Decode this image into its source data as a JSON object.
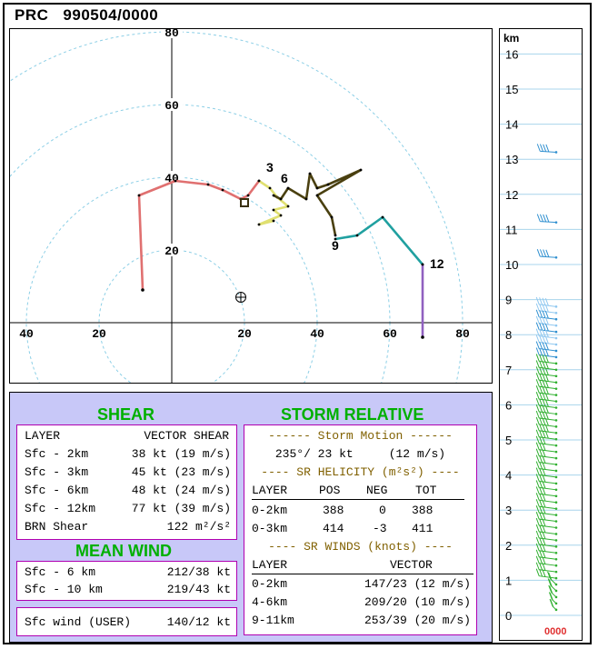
{
  "header": {
    "station": "PRC",
    "datetime": "990504/0000"
  },
  "chart_data": {
    "type": "line",
    "x_ticks": [
      "40",
      "20",
      "20",
      "40",
      "60",
      "80"
    ],
    "y_ticks": [
      "80",
      "60",
      "40",
      "20"
    ],
    "point_labels": [
      "3",
      "6",
      "9",
      "12"
    ],
    "series": [
      {
        "color": "#e07070",
        "points": [
          [
            -8,
            9
          ],
          [
            -9,
            35
          ],
          [
            1,
            39
          ],
          [
            10,
            38
          ],
          [
            14,
            36.5
          ],
          [
            19,
            34
          ],
          [
            21,
            35
          ],
          [
            24,
            39
          ]
        ]
      },
      {
        "color": "#e0e070",
        "points": [
          [
            24,
            39
          ],
          [
            27,
            37
          ],
          [
            29,
            34.5
          ],
          [
            32,
            32
          ],
          [
            28,
            31
          ],
          [
            30,
            29.5
          ],
          [
            24,
            27
          ],
          [
            28,
            28
          ]
        ]
      },
      {
        "color": "#4a4010",
        "points": [
          [
            28,
            35
          ],
          [
            30,
            34
          ],
          [
            32,
            37
          ],
          [
            37,
            34
          ],
          [
            38,
            41
          ],
          [
            40,
            37
          ],
          [
            43,
            38
          ],
          [
            52,
            42
          ],
          [
            40,
            35
          ],
          [
            44,
            29
          ],
          [
            45,
            24
          ]
        ]
      },
      {
        "color": "#20a0a0",
        "points": [
          [
            45,
            23
          ],
          [
            51,
            24
          ],
          [
            58,
            29
          ],
          [
            69,
            16
          ]
        ]
      },
      {
        "color": "#9060c0",
        "points": [
          [
            69,
            16
          ],
          [
            69,
            -4
          ]
        ]
      }
    ],
    "storm_motion": [
      19,
      7
    ],
    "square_marker": [
      20,
      33
    ]
  },
  "shear": {
    "title": "SHEAR",
    "header_layer": "LAYER",
    "header_vector": "VECTOR SHEAR",
    "rows": [
      {
        "label": "Sfc - 2km",
        "value": "38 kt (19 m/s)"
      },
      {
        "label": "Sfc - 3km",
        "value": "45 kt (23 m/s)"
      },
      {
        "label": "Sfc - 6km",
        "value": "48 kt (24 m/s)"
      },
      {
        "label": "Sfc - 12km",
        "value": "77 kt (39 m/s)"
      },
      {
        "label": "BRN Shear",
        "value": "122 m²/s²"
      }
    ]
  },
  "mean_wind": {
    "title": "MEAN WIND",
    "rows": [
      {
        "label": "Sfc - 6 km",
        "value": "212/38 kt"
      },
      {
        "label": "Sfc - 10 km",
        "value": "219/43 kt"
      }
    ],
    "sfc_wind_label": "Sfc wind (USER)",
    "sfc_wind_value": "140/12 kt"
  },
  "storm_relative": {
    "title": "STORM RELATIVE",
    "storm_motion_title": "------ Storm Motion ------",
    "storm_motion_value": "235°/ 23 kt     (12 m/s)",
    "helicity_title": "---- SR HELICITY (m²s²) ----",
    "helicity_headers": [
      "LAYER",
      "POS",
      "NEG",
      "TOT"
    ],
    "helicity_rows": [
      {
        "layer": "0-2km",
        "pos": "388",
        "neg": "0",
        "tot": "388"
      },
      {
        "layer": "0-3km",
        "pos": "414",
        "neg": "-3",
        "tot": "411"
      }
    ],
    "winds_title": "---- SR WINDS (knots) ----",
    "winds_headers": [
      "LAYER",
      "VECTOR"
    ],
    "winds_rows": [
      {
        "layer": "0-2km",
        "vector": "147/23 (12 m/s)"
      },
      {
        "layer": "4-6km",
        "vector": "209/20 (10 m/s)"
      },
      {
        "layer": "9-11km",
        "vector": "253/39 (20 m/s)"
      }
    ]
  },
  "sidebar": {
    "unit": "km",
    "levels": [
      "16",
      "15",
      "14",
      "13",
      "12",
      "11",
      "10",
      "9",
      "8",
      "7",
      "6",
      "5",
      "4",
      "3",
      "2",
      "1",
      "0"
    ],
    "footer": "0000",
    "colors": {
      "upper": "#3090d0",
      "lower": "#30b030",
      "light": "#90c8f0"
    }
  }
}
